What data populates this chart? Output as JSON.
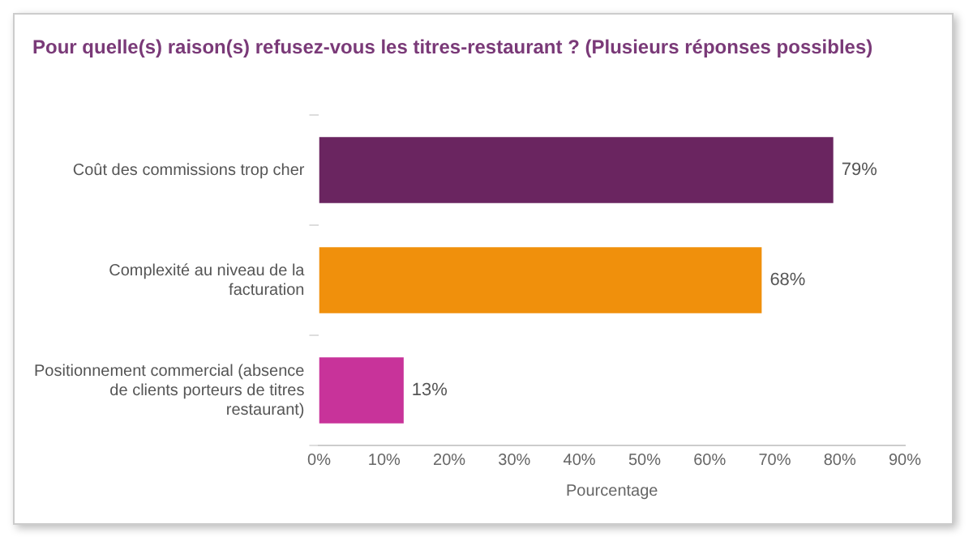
{
  "chart_data": {
    "type": "bar",
    "orientation": "horizontal",
    "title": "Pour quelle(s) raison(s) refusez-vous les titres-restaurant ? (Plusieurs réponses possibles)",
    "xlabel": "Pourcentage",
    "categories": [
      "Coût des commissions trop cher",
      "Complexité au niveau de la facturation",
      "Positionnement commercial (absence de clients porteurs de titres restaurant)"
    ],
    "values": [
      79,
      68,
      13
    ],
    "colors": [
      "#6a2560",
      "#f0900c",
      "#c8339a"
    ],
    "value_labels": [
      "79%",
      "68%",
      "13%"
    ],
    "xlim": [
      0,
      90
    ],
    "xticks": [
      {
        "value": 0,
        "label": "0%"
      },
      {
        "value": 10,
        "label": "10%"
      },
      {
        "value": 20,
        "label": "20%"
      },
      {
        "value": 30,
        "label": "30%"
      },
      {
        "value": 40,
        "label": "40%"
      },
      {
        "value": 50,
        "label": "50%"
      },
      {
        "value": 60,
        "label": "60%"
      },
      {
        "value": 70,
        "label": "70%"
      },
      {
        "value": 80,
        "label": "80%"
      },
      {
        "value": 90,
        "label": "90%"
      }
    ],
    "grid": false,
    "legend": false
  }
}
